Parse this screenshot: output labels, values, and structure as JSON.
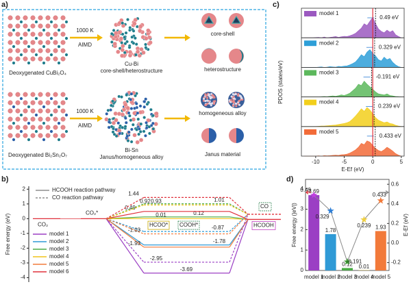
{
  "diagram": {
    "label": "a)",
    "rows": [
      {
        "source": "Deoxygenated CuBi₂O₄",
        "condition": "1000 K",
        "method": "AIMD",
        "product": "Cu-Bi",
        "structure": "core-shell/heterostructure",
        "outcomes": [
          "core-shell",
          "heterostructure"
        ]
      },
      {
        "source": "Deoxygenated Bi₂Sn₂O₇",
        "condition": "1000 K",
        "method": "AIMD",
        "product": "Bi-Sn",
        "structure": "Janus/homogeneous alloy",
        "outcomes": [
          "homogeneous alloy",
          "Janus material"
        ]
      }
    ]
  },
  "chart_data": [
    {
      "type": "energy",
      "label": "b)",
      "ylabel": "Free energy (eV)",
      "ylim": [
        -4.3,
        2.2
      ],
      "yticks": [
        -4,
        -3,
        -2,
        -1,
        0,
        1,
        2
      ],
      "start": {
        "label": "CO₂",
        "value": 0,
        "color": "#e0303a"
      },
      "adsorbed": {
        "label": "CO₂*",
        "value": 0,
        "color": "#e0303a"
      },
      "pathways": [
        {
          "name": "HCOOH reaction pathway",
          "dashed": false,
          "intermediate": "HCOO*",
          "product": "HCOOH",
          "product_value": -0.05
        },
        {
          "name": "CO reaction pathway",
          "dashed": true,
          "intermediate": "COOH*",
          "product": "CO",
          "product_value": 0.3
        }
      ],
      "series": [
        {
          "name": "model 1",
          "color": "#9b3fc4",
          "values": [
            -3.69,
            -2.95
          ]
        },
        {
          "name": "model 2",
          "color": "#2f9ad6",
          "values": [
            -1.78,
            -0.87
          ]
        },
        {
          "name": "model 3",
          "color": "#4aab45",
          "values": [
            0.12,
            1.01
          ]
        },
        {
          "name": "model 4",
          "color": "#f0c419",
          "values": [
            0.01,
            0.93
          ]
        },
        {
          "name": "model 5",
          "color": "#f27a3a",
          "values": [
            -1.93,
            -1.03
          ]
        },
        {
          "name": "model 6",
          "color": "#e0303a",
          "values": [
            0.49,
            1.44
          ]
        }
      ],
      "annotations": [
        {
          "value": 0.92
        }
      ]
    },
    {
      "type": "area",
      "label": "c)",
      "ylabel": "PDOS (states/eV)",
      "xlabel": "E-Ef (eV)",
      "xlim": [
        -12.5,
        5.5
      ],
      "xticks": [
        -10,
        -5,
        0,
        5
      ],
      "ylim": [
        0,
        1
      ],
      "reference_line": 0,
      "x": [
        -12,
        -11.5,
        -11,
        -10.5,
        -10,
        -9.5,
        -9,
        -8.5,
        -8,
        -7.5,
        -7,
        -6.5,
        -6,
        -5.5,
        -5,
        -4.5,
        -4,
        -3.5,
        -3,
        -2.5,
        -2,
        -1.5,
        -1,
        -0.5,
        0,
        0.5,
        1,
        1.5,
        2,
        2.5,
        3,
        3.5,
        4,
        4.5,
        5
      ],
      "series": [
        {
          "name": "model 1",
          "color": "#9b59c0",
          "center": 0.49,
          "center_label": "0.49 eV",
          "values": [
            0,
            0,
            0,
            0,
            0.01,
            0.02,
            0,
            0.03,
            0,
            0.02,
            0.03,
            0.05,
            0.02,
            0.04,
            0.06,
            0.05,
            0.08,
            0.12,
            0.18,
            0.28,
            0.38,
            0.55,
            0.48,
            0.65,
            0.8,
            0.55,
            0.35,
            0.25,
            0.2,
            0.3,
            0.22,
            0.28,
            0.12,
            0.05,
            0
          ]
        },
        {
          "name": "model 2",
          "color": "#2e9fd8",
          "center": 0.329,
          "center_label": "0.329 eV",
          "values": [
            0,
            0,
            0,
            0,
            0,
            0.01,
            0.02,
            0,
            0.01,
            0.03,
            0.02,
            0.01,
            0.04,
            0.03,
            0.05,
            0.06,
            0.1,
            0.15,
            0.22,
            0.35,
            0.5,
            0.42,
            0.6,
            0.7,
            0.55,
            0.45,
            0.3,
            0.25,
            0.4,
            0.3,
            0.35,
            0.2,
            0.1,
            0.03,
            0
          ]
        },
        {
          "name": "model 3",
          "color": "#5cb85c",
          "center": -0.191,
          "center_label": "-0.191 eV",
          "values": [
            0,
            0,
            0,
            0,
            0,
            0,
            0.01,
            0.02,
            0.01,
            0.03,
            0.04,
            0.03,
            0.05,
            0.08,
            0.06,
            0.1,
            0.15,
            0.25,
            0.35,
            0.5,
            0.45,
            0.62,
            0.5,
            0.4,
            0.3,
            0.2,
            0.12,
            0.1,
            0.08,
            0.12,
            0.06,
            0.04,
            0.02,
            0.01,
            0
          ]
        },
        {
          "name": "model 4",
          "color": "#f2cf1c",
          "center": 0.239,
          "center_label": "0.239 eV",
          "values": [
            0,
            0,
            0,
            0,
            0,
            0.01,
            0.02,
            0.02,
            0.03,
            0.04,
            0.05,
            0.06,
            0.08,
            0.1,
            0.12,
            0.15,
            0.2,
            0.3,
            0.42,
            0.55,
            0.7,
            0.6,
            0.75,
            0.65,
            0.5,
            0.35,
            0.25,
            0.2,
            0.15,
            0.18,
            0.12,
            0.1,
            0.05,
            0.02,
            0
          ]
        },
        {
          "name": "model 5",
          "color": "#f26b38",
          "center": 0.433,
          "center_label": "0.433 eV",
          "values": [
            0,
            0,
            0,
            0,
            0,
            0.01,
            0,
            0.02,
            0.01,
            0.02,
            0.03,
            0.04,
            0.03,
            0.05,
            0.06,
            0.08,
            0.12,
            0.18,
            0.25,
            0.35,
            0.5,
            0.45,
            0.6,
            0.55,
            0.42,
            0.3,
            0.22,
            0.18,
            0.25,
            0.35,
            0.28,
            0.2,
            0.1,
            0.04,
            0
          ]
        }
      ]
    },
    {
      "type": "bar",
      "label": "d)",
      "ylabel": "Free energy (|eV|)",
      "ylim": [
        0,
        4.46
      ],
      "yticks": [
        0,
        1,
        2,
        3,
        4
      ],
      "categories": [
        "model 1",
        "model 2",
        "model 3",
        "model 4",
        "model 5"
      ],
      "values": [
        3.69,
        1.78,
        0.12,
        0.01,
        1.93
      ],
      "colors": [
        "#9b3fc4",
        "#2f9ad6",
        "#4aab45",
        "#f0c419",
        "#f27a3a"
      ],
      "y2label": "E-Ef (eV)",
      "y2lim": [
        -0.28,
        0.65
      ],
      "y2ticks": [
        -0.2,
        {
          "value": 0,
          "label": "0.0"
        },
        0.2,
        0.4,
        0.6
      ],
      "series": [
        {
          "type": "line",
          "axis": "y2",
          "line_color": "#8a8a8a",
          "colors": [
            "#c03fe0",
            "#2f7fd6",
            "#3a9a30",
            "#f0d040",
            "#f27a3a"
          ],
          "values": [
            0.49,
            0.329,
            -0.191,
            0.239,
            0.433
          ]
        }
      ]
    }
  ]
}
